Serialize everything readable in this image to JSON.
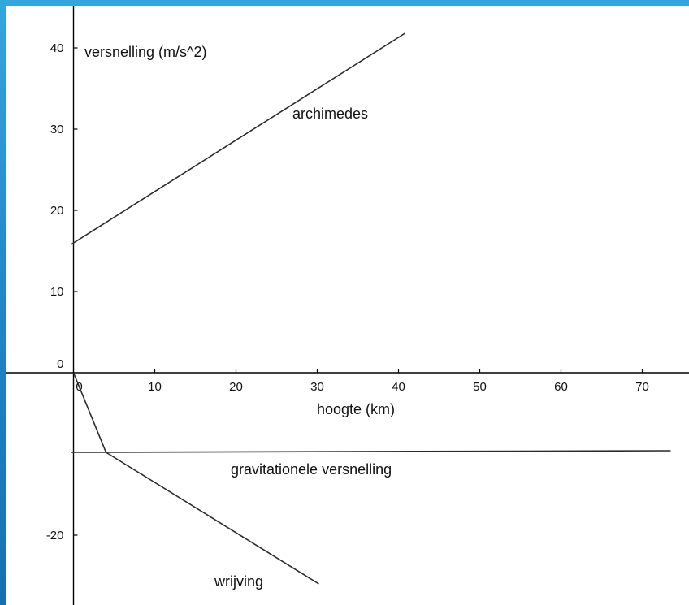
{
  "chart_data": {
    "type": "line",
    "title": "",
    "xlabel": "hoogte (km)",
    "ylabel": "versnelling (m/s^2)",
    "xlim": [
      -0.3,
      73.5
    ],
    "ylim": [
      -26,
      41.8
    ],
    "grid": false,
    "x_ticks": [
      0,
      10,
      20,
      30,
      40,
      50,
      60,
      70
    ],
    "y_ticks": [
      0,
      10,
      20,
      30,
      40
    ],
    "y_ticks_negative": [
      -20
    ],
    "series": [
      {
        "name": "archimedes",
        "points": [
          [
            -0.3,
            15.8
          ],
          [
            40.8,
            41.8
          ]
        ]
      },
      {
        "name": "gravitationele versnelling",
        "points": [
          [
            -0.3,
            -9.8
          ],
          [
            73.5,
            -9.6
          ]
        ]
      },
      {
        "name": "wrijving",
        "points": [
          [
            0,
            0
          ],
          [
            4,
            -9.8
          ],
          [
            30.2,
            -26
          ]
        ]
      }
    ]
  }
}
